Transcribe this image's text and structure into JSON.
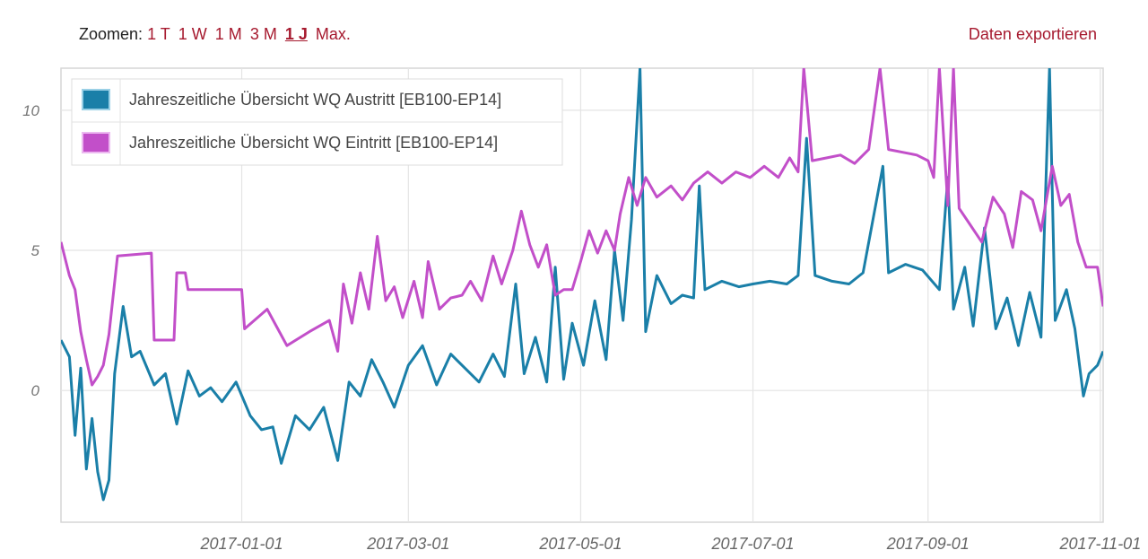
{
  "toolbar": {
    "zoom_label": "Zoomen:",
    "zoom_options": [
      "1 T",
      "1 W",
      "1 M",
      "3 M",
      "1 J",
      "Max."
    ],
    "active_zoom": "1 J",
    "export_label": "Daten exportieren"
  },
  "colors": {
    "austritt": "#1a7fa8",
    "eintritt": "#c24fc9",
    "accent": "#a6192e"
  },
  "chart_data": {
    "type": "line",
    "x_type": "date",
    "xlim": [
      "2016-10-29",
      "2017-11-02"
    ],
    "ylim": [
      -4.7,
      11.5
    ],
    "y_ticks": [
      0,
      5,
      10
    ],
    "x_ticks": [
      "2017-01-01",
      "2017-03-01",
      "2017-05-01",
      "2017-07-01",
      "2017-09-01",
      "2017-11-01"
    ],
    "grid": true,
    "legend_position": "top-left",
    "series": [
      {
        "name": "Jahreszeitliche Übersicht WQ Austritt [EB100-EP14]",
        "color": "#1a7fa8",
        "points": [
          [
            "2016-10-29",
            1.8
          ],
          [
            "2016-11-01",
            1.2
          ],
          [
            "2016-11-03",
            -1.6
          ],
          [
            "2016-11-05",
            0.8
          ],
          [
            "2016-11-07",
            -2.8
          ],
          [
            "2016-11-09",
            -1.0
          ],
          [
            "2016-11-11",
            -2.9
          ],
          [
            "2016-11-13",
            -3.9
          ],
          [
            "2016-11-15",
            -3.2
          ],
          [
            "2016-11-17",
            0.6
          ],
          [
            "2016-11-20",
            3.0
          ],
          [
            "2016-11-23",
            1.2
          ],
          [
            "2016-11-26",
            1.4
          ],
          [
            "2016-12-01",
            0.2
          ],
          [
            "2016-12-05",
            0.6
          ],
          [
            "2016-12-09",
            -1.2
          ],
          [
            "2016-12-13",
            0.7
          ],
          [
            "2016-12-17",
            -0.2
          ],
          [
            "2016-12-21",
            0.1
          ],
          [
            "2016-12-25",
            -0.4
          ],
          [
            "2016-12-30",
            0.3
          ],
          [
            "2017-01-04",
            -0.9
          ],
          [
            "2017-01-08",
            -1.4
          ],
          [
            "2017-01-12",
            -1.3
          ],
          [
            "2017-01-15",
            -2.6
          ],
          [
            "2017-01-20",
            -0.9
          ],
          [
            "2017-01-25",
            -1.4
          ],
          [
            "2017-01-30",
            -0.6
          ],
          [
            "2017-02-04",
            -2.5
          ],
          [
            "2017-02-08",
            0.3
          ],
          [
            "2017-02-12",
            -0.2
          ],
          [
            "2017-02-16",
            1.1
          ],
          [
            "2017-02-20",
            0.3
          ],
          [
            "2017-02-24",
            -0.6
          ],
          [
            "2017-03-01",
            0.9
          ],
          [
            "2017-03-06",
            1.6
          ],
          [
            "2017-03-11",
            0.2
          ],
          [
            "2017-03-16",
            1.3
          ],
          [
            "2017-03-21",
            0.8
          ],
          [
            "2017-03-26",
            0.3
          ],
          [
            "2017-03-31",
            1.3
          ],
          [
            "2017-04-04",
            0.5
          ],
          [
            "2017-04-08",
            3.8
          ],
          [
            "2017-04-11",
            0.6
          ],
          [
            "2017-04-15",
            1.9
          ],
          [
            "2017-04-19",
            0.3
          ],
          [
            "2017-04-22",
            4.4
          ],
          [
            "2017-04-25",
            0.4
          ],
          [
            "2017-04-28",
            2.4
          ],
          [
            "2017-05-02",
            0.9
          ],
          [
            "2017-05-06",
            3.2
          ],
          [
            "2017-05-10",
            1.1
          ],
          [
            "2017-05-13",
            5.0
          ],
          [
            "2017-05-16",
            2.5
          ],
          [
            "2017-05-19",
            6.1
          ],
          [
            "2017-05-22",
            11.5
          ],
          [
            "2017-05-24",
            2.1
          ],
          [
            "2017-05-28",
            4.1
          ],
          [
            "2017-06-02",
            3.1
          ],
          [
            "2017-06-06",
            3.4
          ],
          [
            "2017-06-10",
            3.3
          ],
          [
            "2017-06-12",
            7.3
          ],
          [
            "2017-06-14",
            3.6
          ],
          [
            "2017-06-20",
            3.9
          ],
          [
            "2017-06-26",
            3.7
          ],
          [
            "2017-07-01",
            3.8
          ],
          [
            "2017-07-07",
            3.9
          ],
          [
            "2017-07-13",
            3.8
          ],
          [
            "2017-07-17",
            4.1
          ],
          [
            "2017-07-20",
            9.0
          ],
          [
            "2017-07-23",
            4.1
          ],
          [
            "2017-07-29",
            3.9
          ],
          [
            "2017-08-04",
            3.8
          ],
          [
            "2017-08-09",
            4.2
          ],
          [
            "2017-08-16",
            8.0
          ],
          [
            "2017-08-18",
            4.2
          ],
          [
            "2017-08-24",
            4.5
          ],
          [
            "2017-08-30",
            4.3
          ],
          [
            "2017-09-05",
            3.6
          ],
          [
            "2017-09-08",
            7.6
          ],
          [
            "2017-09-10",
            2.9
          ],
          [
            "2017-09-14",
            4.4
          ],
          [
            "2017-09-17",
            2.3
          ],
          [
            "2017-09-21",
            5.8
          ],
          [
            "2017-09-25",
            2.2
          ],
          [
            "2017-09-29",
            3.3
          ],
          [
            "2017-10-03",
            1.6
          ],
          [
            "2017-10-07",
            3.5
          ],
          [
            "2017-10-11",
            1.9
          ],
          [
            "2017-10-14",
            11.5
          ],
          [
            "2017-10-16",
            2.5
          ],
          [
            "2017-10-20",
            3.6
          ],
          [
            "2017-10-23",
            2.2
          ],
          [
            "2017-10-26",
            -0.2
          ],
          [
            "2017-10-28",
            0.6
          ],
          [
            "2017-10-31",
            0.9
          ],
          [
            "2017-11-02",
            1.4
          ]
        ]
      },
      {
        "name": "Jahreszeitliche Übersicht WQ Eintritt [EB100-EP14]",
        "color": "#c24fc9",
        "points": [
          [
            "2016-10-29",
            5.3
          ],
          [
            "2016-11-01",
            4.1
          ],
          [
            "2016-11-03",
            3.6
          ],
          [
            "2016-11-05",
            2.1
          ],
          [
            "2016-11-07",
            1.1
          ],
          [
            "2016-11-09",
            0.2
          ],
          [
            "2016-11-11",
            0.5
          ],
          [
            "2016-11-13",
            0.9
          ],
          [
            "2016-11-15",
            2.0
          ],
          [
            "2016-11-18",
            4.8
          ],
          [
            "2016-11-30",
            4.9
          ],
          [
            "2016-12-01",
            1.8
          ],
          [
            "2016-12-08",
            1.8
          ],
          [
            "2016-12-09",
            4.2
          ],
          [
            "2016-12-12",
            4.2
          ],
          [
            "2016-12-13",
            3.6
          ],
          [
            "2017-01-01",
            3.6
          ],
          [
            "2017-01-02",
            2.2
          ],
          [
            "2017-01-10",
            2.9
          ],
          [
            "2017-01-17",
            1.6
          ],
          [
            "2017-01-25",
            2.1
          ],
          [
            "2017-02-01",
            2.5
          ],
          [
            "2017-02-04",
            1.4
          ],
          [
            "2017-02-06",
            3.8
          ],
          [
            "2017-02-09",
            2.4
          ],
          [
            "2017-02-12",
            4.2
          ],
          [
            "2017-02-15",
            2.9
          ],
          [
            "2017-02-18",
            5.5
          ],
          [
            "2017-02-21",
            3.2
          ],
          [
            "2017-02-24",
            3.7
          ],
          [
            "2017-02-27",
            2.6
          ],
          [
            "2017-03-03",
            3.9
          ],
          [
            "2017-03-06",
            2.6
          ],
          [
            "2017-03-08",
            4.6
          ],
          [
            "2017-03-12",
            2.9
          ],
          [
            "2017-03-16",
            3.3
          ],
          [
            "2017-03-20",
            3.4
          ],
          [
            "2017-03-23",
            3.9
          ],
          [
            "2017-03-27",
            3.2
          ],
          [
            "2017-03-31",
            4.8
          ],
          [
            "2017-04-03",
            3.8
          ],
          [
            "2017-04-07",
            5.0
          ],
          [
            "2017-04-10",
            6.4
          ],
          [
            "2017-04-13",
            5.2
          ],
          [
            "2017-04-16",
            4.4
          ],
          [
            "2017-04-19",
            5.2
          ],
          [
            "2017-04-22",
            3.4
          ],
          [
            "2017-04-25",
            3.6
          ],
          [
            "2017-04-28",
            3.6
          ],
          [
            "2017-05-01",
            4.6
          ],
          [
            "2017-05-04",
            5.7
          ],
          [
            "2017-05-07",
            4.9
          ],
          [
            "2017-05-10",
            5.7
          ],
          [
            "2017-05-13",
            5.0
          ],
          [
            "2017-05-15",
            6.3
          ],
          [
            "2017-05-18",
            7.6
          ],
          [
            "2017-05-21",
            6.6
          ],
          [
            "2017-05-24",
            7.6
          ],
          [
            "2017-05-28",
            6.9
          ],
          [
            "2017-06-02",
            7.3
          ],
          [
            "2017-06-06",
            6.8
          ],
          [
            "2017-06-10",
            7.4
          ],
          [
            "2017-06-15",
            7.8
          ],
          [
            "2017-06-20",
            7.4
          ],
          [
            "2017-06-25",
            7.8
          ],
          [
            "2017-06-30",
            7.6
          ],
          [
            "2017-07-05",
            8.0
          ],
          [
            "2017-07-10",
            7.6
          ],
          [
            "2017-07-14",
            8.3
          ],
          [
            "2017-07-17",
            7.8
          ],
          [
            "2017-07-19",
            11.5
          ],
          [
            "2017-07-22",
            8.2
          ],
          [
            "2017-07-27",
            8.3
          ],
          [
            "2017-08-01",
            8.4
          ],
          [
            "2017-08-06",
            8.1
          ],
          [
            "2017-08-11",
            8.6
          ],
          [
            "2017-08-15",
            11.5
          ],
          [
            "2017-08-18",
            8.6
          ],
          [
            "2017-08-23",
            8.5
          ],
          [
            "2017-08-28",
            8.4
          ],
          [
            "2017-09-01",
            8.2
          ],
          [
            "2017-09-03",
            7.6
          ],
          [
            "2017-09-05",
            11.5
          ],
          [
            "2017-09-08",
            6.6
          ],
          [
            "2017-09-10",
            11.5
          ],
          [
            "2017-09-12",
            6.5
          ],
          [
            "2017-09-16",
            5.9
          ],
          [
            "2017-09-20",
            5.3
          ],
          [
            "2017-09-24",
            6.9
          ],
          [
            "2017-09-28",
            6.3
          ],
          [
            "2017-10-01",
            5.1
          ],
          [
            "2017-10-04",
            7.1
          ],
          [
            "2017-10-08",
            6.8
          ],
          [
            "2017-10-11",
            5.7
          ],
          [
            "2017-10-15",
            8.0
          ],
          [
            "2017-10-18",
            6.6
          ],
          [
            "2017-10-21",
            7.0
          ],
          [
            "2017-10-24",
            5.3
          ],
          [
            "2017-10-27",
            4.4
          ],
          [
            "2017-10-31",
            4.4
          ],
          [
            "2017-11-02",
            3.0
          ]
        ]
      }
    ]
  }
}
